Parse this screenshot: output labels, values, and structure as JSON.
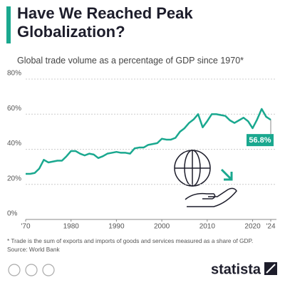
{
  "chart_data": {
    "type": "line",
    "title": "Have We Reached Peak Globalization?",
    "subtitle": "Global trade volume as a percentage of GDP since 1970*",
    "note": "* Trade is the sum of exports and imports of goods and services measured as a share of GDP.",
    "source": "Source: World Bank",
    "logo": "statista",
    "color": "#1aa88f",
    "x": [
      1970,
      1971,
      1972,
      1973,
      1974,
      1975,
      1976,
      1977,
      1978,
      1979,
      1980,
      1981,
      1982,
      1983,
      1984,
      1985,
      1986,
      1987,
      1988,
      1989,
      1990,
      1991,
      1992,
      1993,
      1994,
      1995,
      1996,
      1997,
      1998,
      1999,
      2000,
      2001,
      2002,
      2003,
      2004,
      2005,
      2006,
      2007,
      2008,
      2009,
      2010,
      2011,
      2012,
      2013,
      2014,
      2015,
      2016,
      2017,
      2018,
      2019,
      2020,
      2021,
      2022,
      2023,
      2024
    ],
    "values": [
      26,
      26,
      26.5,
      29,
      34,
      32.5,
      33,
      33.5,
      33.5,
      36,
      39,
      39,
      37.5,
      36.5,
      37.5,
      37,
      35,
      36,
      37.5,
      38,
      38.5,
      38,
      38,
      37.5,
      40.5,
      41,
      41,
      42.5,
      43,
      43.5,
      46,
      45.5,
      45.5,
      46.5,
      50,
      52,
      55,
      57,
      60,
      52.5,
      56,
      60,
      60,
      59.5,
      59,
      56.5,
      55,
      56.5,
      58,
      56,
      52,
      57,
      63,
      58.5,
      56.8
    ],
    "value_labels": [
      null,
      null,
      null,
      null,
      null,
      null,
      null,
      null,
      null,
      null,
      null,
      null,
      null,
      null,
      null,
      null,
      null,
      null,
      null,
      null,
      null,
      null,
      null,
      null,
      null,
      null,
      null,
      null,
      null,
      null,
      null,
      null,
      null,
      null,
      null,
      null,
      null,
      null,
      null,
      null,
      null,
      null,
      null,
      null,
      null,
      null,
      null,
      null,
      null,
      null,
      null,
      null,
      null,
      null,
      "56.8%"
    ],
    "xlim": [
      1970,
      2024
    ],
    "xticks": [
      {
        "value": 1970,
        "label": "'70"
      },
      1980,
      1990,
      2000,
      2010,
      2020,
      {
        "value": 2024,
        "label": "'24"
      }
    ],
    "ylim": [
      0,
      80
    ],
    "yticks": [
      {
        "value": 0,
        "label": "0%"
      },
      {
        "value": 20,
        "label": "20%"
      },
      {
        "value": 40,
        "label": "40%"
      },
      {
        "value": 60,
        "label": "60%"
      },
      {
        "value": 80,
        "label": "80%"
      }
    ],
    "grid": true
  }
}
